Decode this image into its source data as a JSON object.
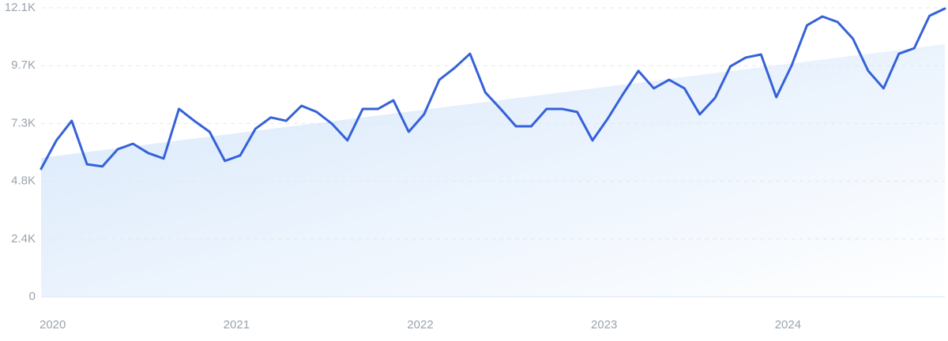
{
  "chart_data": {
    "type": "line",
    "categories": [
      "2020",
      null,
      null,
      null,
      null,
      null,
      null,
      null,
      null,
      null,
      null,
      null,
      "2021",
      null,
      null,
      null,
      null,
      null,
      null,
      null,
      null,
      null,
      null,
      null,
      "2022",
      null,
      null,
      null,
      null,
      null,
      null,
      null,
      null,
      null,
      null,
      null,
      "2023",
      null,
      null,
      null,
      null,
      null,
      null,
      null,
      null,
      null,
      null,
      null,
      "2024",
      null,
      null,
      null,
      null,
      null,
      null,
      null,
      null,
      null,
      null,
      null
    ],
    "series": [
      {
        "color": "#3561d9",
        "values": [
          5360,
          6550,
          7370,
          5550,
          5460,
          6180,
          6410,
          6020,
          5790,
          7870,
          7370,
          6910,
          5690,
          5920,
          7040,
          7510,
          7370,
          8000,
          7740,
          7240,
          6550,
          7870,
          7870,
          8230,
          6910,
          7640,
          9090,
          9590,
          10180,
          8560,
          7870,
          7140,
          7140,
          7870,
          7870,
          7740,
          6550,
          7470,
          8500,
          9460,
          8730,
          9090,
          8730,
          7640,
          8330,
          9650,
          10020,
          10150,
          8360,
          9690,
          11370,
          11740,
          11510,
          10810,
          9460,
          8730,
          10180,
          10410,
          11770,
          12070
        ]
      }
    ],
    "trend": {
      "color": "#d6e7fb",
      "values": [
        5820,
        10580
      ]
    },
    "ylim": [
      0,
      12100
    ],
    "yticks": [
      0,
      {
        "value": 2420,
        "label": "2.4K"
      },
      {
        "value": 4840,
        "label": "4.8K"
      },
      {
        "value": 7260,
        "label": "7.3K"
      },
      {
        "value": 9680,
        "label": "9.7K"
      },
      {
        "value": 12100,
        "label": "12.1K"
      }
    ],
    "grid": true
  }
}
